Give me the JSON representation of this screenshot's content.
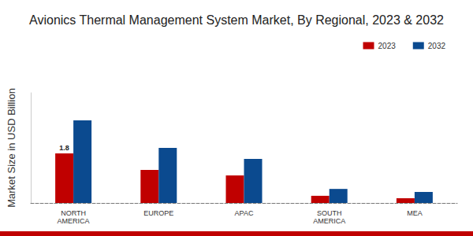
{
  "chart_data": {
    "type": "bar",
    "title": "Avionics Thermal Management System Market, By Regional, 2023 & 2032",
    "y_label": "Market Size in USD Billion",
    "categories": [
      "NORTH\nAMERICA",
      "EUROPE",
      "APAC",
      "SOUTH\nAMERICA",
      "MEA"
    ],
    "series": [
      {
        "name": "2023",
        "color": "#c00000",
        "values": [
          1.8,
          1.2,
          1.0,
          0.26,
          0.17
        ],
        "value_labels": [
          "1.8",
          null,
          null,
          null,
          null
        ]
      },
      {
        "name": "2032",
        "color": "#0b4a8f",
        "values": [
          3.0,
          2.0,
          1.6,
          0.51,
          0.4
        ]
      }
    ],
    "ylim": [
      0,
      4
    ],
    "legend": "top-right",
    "grid": false,
    "tick_labels": "x"
  }
}
